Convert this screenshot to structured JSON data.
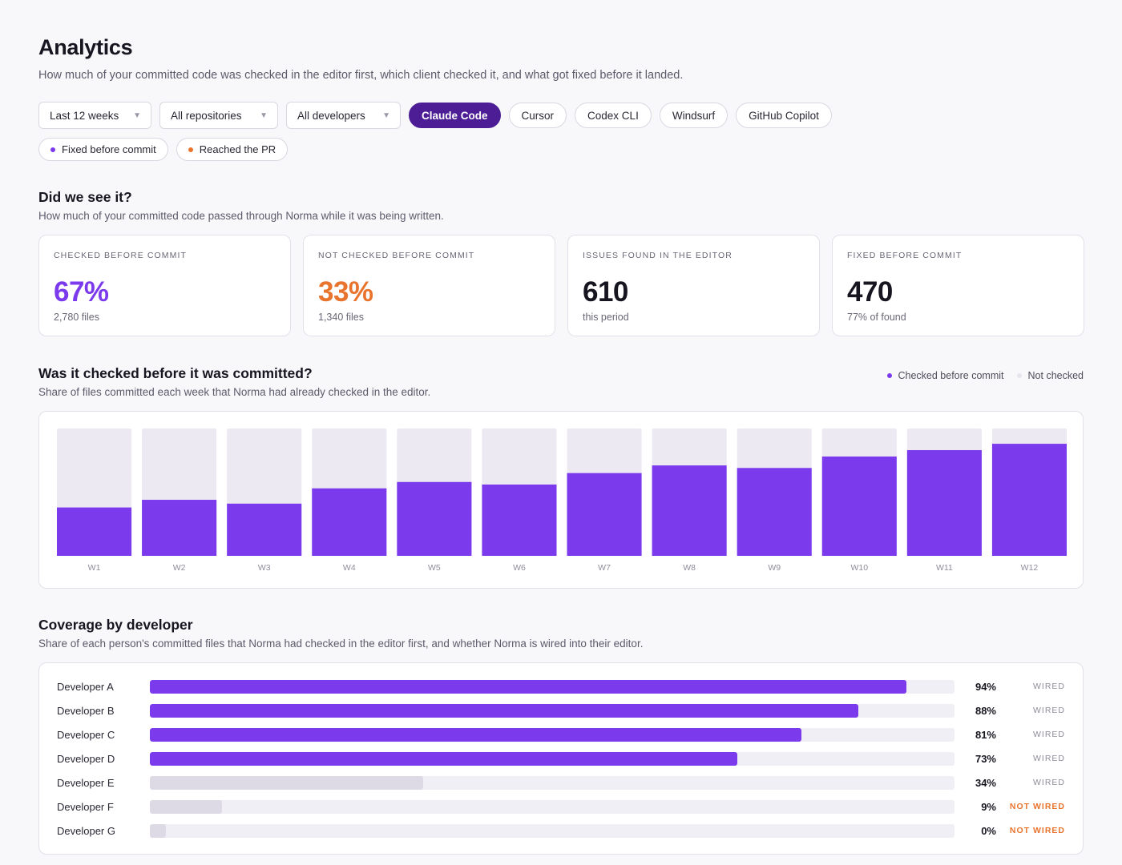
{
  "header": {
    "title": "Analytics",
    "subtitle": "How much of your committed code was checked in the editor first, which client checked it, and what got fixed before it landed."
  },
  "filters": {
    "period": "Last 12 weeks",
    "repositories": "All repositories",
    "developers": "All developers",
    "clients": [
      "Claude Code",
      "Cursor",
      "Codex CLI",
      "Windsurf",
      "GitHub Copilot"
    ],
    "active_client": "Claude Code"
  },
  "toggles": {
    "fixed": "Fixed before commit",
    "reached": "Reached the PR"
  },
  "colors": {
    "accent": "#7c3aed",
    "accent_dark": "#4c1d95",
    "orange": "#e8742e",
    "track": "#ece9f3",
    "low_fill": "#dddae6"
  },
  "seen": {
    "heading": "Did we see it?",
    "subheading": "How much of your committed code passed through Norma while it was being written."
  },
  "cards": [
    {
      "label": "Checked before commit",
      "value": "67%",
      "sub": "2,780 files",
      "color": "#7c3aed"
    },
    {
      "label": "Not checked before commit",
      "value": "33%",
      "sub": "1,340 files",
      "color": "#e8742e"
    },
    {
      "label": "Issues found in the editor",
      "value": "610",
      "sub": "this period",
      "color": "#17151f"
    },
    {
      "label": "Fixed before commit",
      "value": "470",
      "sub": "77% of found",
      "color": "#17151f"
    }
  ],
  "weekly": {
    "heading": "Was it checked before it was committed?",
    "subheading": "Share of files committed each week that Norma had already checked in the editor.",
    "legend_checked": "Checked before commit",
    "legend_not": "Not checked"
  },
  "chart_data": {
    "type": "bar",
    "categories": [
      "W1",
      "W2",
      "W3",
      "W4",
      "W5",
      "W6",
      "W7",
      "W8",
      "W9",
      "W10",
      "W11",
      "W12"
    ],
    "series": [
      {
        "name": "Checked before commit",
        "values": [
          38,
          44,
          41,
          53,
          58,
          56,
          65,
          71,
          69,
          78,
          83,
          88
        ]
      },
      {
        "name": "Not checked",
        "values": [
          62,
          56,
          59,
          47,
          42,
          44,
          35,
          29,
          31,
          22,
          17,
          12
        ]
      }
    ],
    "stacked": true,
    "ylim": [
      0,
      100
    ],
    "grid": false
  },
  "coverage": {
    "heading": "Coverage by developer",
    "subheading": "Share of each person's committed files that Norma had checked in the editor first, and whether Norma is wired into their editor.",
    "developers": [
      {
        "name": "Developer A",
        "pct": 94,
        "pct_label": "94%",
        "status": "WIRED",
        "wired": true
      },
      {
        "name": "Developer B",
        "pct": 88,
        "pct_label": "88%",
        "status": "WIRED",
        "wired": true
      },
      {
        "name": "Developer C",
        "pct": 81,
        "pct_label": "81%",
        "status": "WIRED",
        "wired": true
      },
      {
        "name": "Developer D",
        "pct": 73,
        "pct_label": "73%",
        "status": "WIRED",
        "wired": true
      },
      {
        "name": "Developer E",
        "pct": 34,
        "pct_label": "34%",
        "status": "WIRED",
        "wired": true
      },
      {
        "name": "Developer F",
        "pct": 9,
        "pct_label": "9%",
        "status": "NOT WIRED",
        "wired": false
      },
      {
        "name": "Developer G",
        "pct": 0,
        "pct_label": "0%",
        "status": "NOT WIRED",
        "wired": false
      }
    ]
  }
}
